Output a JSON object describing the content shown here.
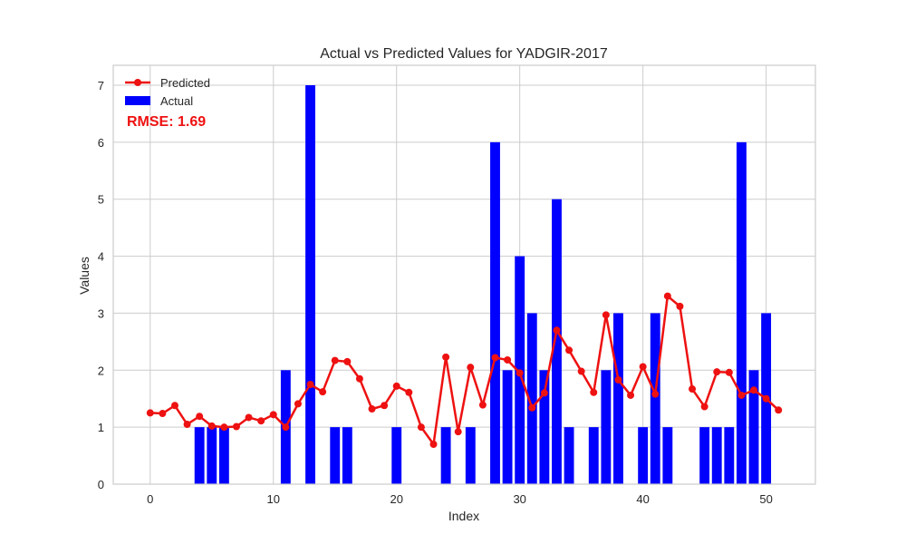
{
  "chart_data": {
    "type": "bar",
    "title": "Actual vs Predicted Values for YADGIR-2017",
    "xlabel": "Index",
    "ylabel": "Values",
    "xlim": [
      -3,
      54
    ],
    "ylim": [
      0,
      7.35
    ],
    "x_ticks": [
      0,
      10,
      20,
      30,
      40,
      50
    ],
    "y_ticks": [
      0,
      1,
      2,
      3,
      4,
      5,
      6,
      7
    ],
    "grid": true,
    "legend_position": "top-left",
    "annotation": "RMSE: 1.69",
    "series": [
      {
        "name": "Predicted",
        "type": "line",
        "color": "#ee1111",
        "marker": "circle",
        "x": [
          0,
          1,
          2,
          3,
          4,
          5,
          6,
          7,
          8,
          9,
          10,
          11,
          12,
          13,
          14,
          15,
          16,
          17,
          18,
          19,
          20,
          21,
          22,
          23,
          24,
          25,
          26,
          27,
          28,
          29,
          30,
          31,
          32,
          33,
          34,
          35,
          36,
          37,
          38,
          39,
          40,
          41,
          42,
          43,
          44,
          45,
          46,
          47,
          48,
          49,
          50,
          51
        ],
        "values": [
          1.25,
          1.24,
          1.38,
          1.05,
          1.19,
          1.02,
          1.0,
          1.01,
          1.17,
          1.11,
          1.22,
          1.0,
          1.41,
          1.75,
          1.62,
          2.17,
          2.15,
          1.85,
          1.32,
          1.38,
          1.72,
          1.61,
          1.0,
          0.7,
          2.23,
          0.92,
          2.05,
          1.39,
          2.22,
          2.18,
          1.95,
          1.34,
          1.6,
          2.7,
          2.35,
          1.98,
          1.61,
          2.97,
          1.83,
          1.56,
          2.06,
          1.58,
          3.3,
          3.12,
          1.67,
          1.36,
          1.97,
          1.96,
          1.56,
          1.65,
          1.5,
          1.3
        ]
      },
      {
        "name": "Actual",
        "type": "bar",
        "color": "#0000ff",
        "x": [
          0,
          1,
          2,
          3,
          4,
          5,
          6,
          7,
          8,
          9,
          10,
          11,
          12,
          13,
          14,
          15,
          16,
          17,
          18,
          19,
          20,
          21,
          22,
          23,
          24,
          25,
          26,
          27,
          28,
          29,
          30,
          31,
          32,
          33,
          34,
          35,
          36,
          37,
          38,
          39,
          40,
          41,
          42,
          43,
          44,
          45,
          46,
          47,
          48,
          49,
          50,
          51
        ],
        "values": [
          0,
          0,
          0,
          0,
          1,
          1,
          1,
          0,
          0,
          0,
          0,
          2,
          0,
          7,
          0,
          1,
          1,
          0,
          0,
          0,
          1,
          0,
          0,
          0,
          1,
          0,
          1,
          0,
          6,
          2,
          4,
          3,
          2,
          5,
          1,
          0,
          1,
          2,
          3,
          0,
          1,
          3,
          1,
          0,
          0,
          1,
          1,
          1,
          6,
          2,
          3,
          0
        ]
      }
    ]
  }
}
